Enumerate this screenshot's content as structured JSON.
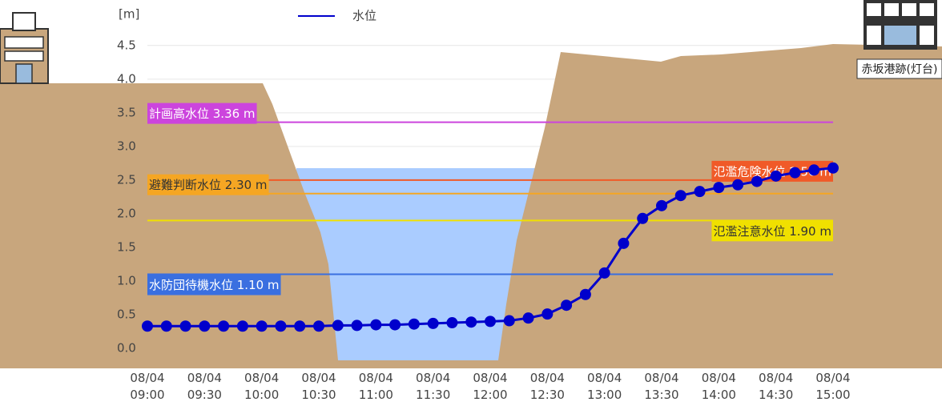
{
  "chart_data": {
    "type": "line",
    "unit_label": "[m]",
    "categories": [
      "08/04 09:00",
      null,
      null,
      "08/04 09:30",
      null,
      null,
      "08/04 10:00",
      null,
      null,
      "08/04 10:30",
      null,
      null,
      "08/04 11:00",
      null,
      null,
      "08/04 11:30",
      null,
      null,
      "08/04 12:00",
      null,
      null,
      "08/04 12:30",
      null,
      null,
      "08/04 13:00",
      null,
      null,
      "08/04 13:30",
      null,
      null,
      "08/04 14:00",
      null,
      null,
      "08/04 14:30",
      null,
      null,
      "08/04 15:00"
    ],
    "series": [
      {
        "name": "水位",
        "color": "#0000cc",
        "values": [
          0.33,
          0.33,
          0.33,
          0.33,
          0.33,
          0.33,
          0.33,
          0.33,
          0.33,
          0.33,
          0.34,
          0.34,
          0.35,
          0.35,
          0.36,
          0.37,
          0.38,
          0.39,
          0.4,
          0.41,
          0.45,
          0.51,
          0.64,
          0.8,
          1.12,
          1.56,
          1.93,
          2.12,
          2.27,
          2.33,
          2.39,
          2.43,
          2.48,
          2.56,
          2.61,
          2.65,
          2.68
        ]
      }
    ],
    "ylim": [
      -0.2,
      4.7
    ],
    "yticks": [
      {
        "value": 0,
        "label": "0.0"
      },
      0.5,
      {
        "value": 1,
        "label": "1.0"
      },
      1.5,
      {
        "value": 2,
        "label": "2.0"
      },
      2.5,
      {
        "value": 3,
        "label": "3.0"
      },
      3.5,
      {
        "value": 4,
        "label": "4.0"
      },
      4.5
    ],
    "grid": true,
    "thresholds": [
      {
        "label": "計画高水位 3.36 m",
        "value": 3.36,
        "color": "#cc44dd",
        "text_color": "#ffffff",
        "align": "left",
        "placement": "above"
      },
      {
        "label": "氾濫危険水位 2.50 m",
        "value": 2.5,
        "color": "#f05a28",
        "text_color": "#ffffff",
        "align": "right",
        "placement": "above"
      },
      {
        "label": "避難判断水位 2.30 m",
        "value": 2.3,
        "color": "#f5a623",
        "text_color": "#333333",
        "align": "left",
        "placement": "above"
      },
      {
        "label": "氾濫注意水位 1.90 m",
        "value": 1.9,
        "color": "#f0e000",
        "text_color": "#333333",
        "align": "right",
        "placement": "below"
      },
      {
        "label": "水防団待機水位 1.10 m",
        "value": 1.1,
        "color": "#3a6fe0",
        "text_color": "#ffffff",
        "align": "left",
        "placement": "below"
      }
    ],
    "annotations": [
      "赤坂港跡(灯台)"
    ]
  }
}
